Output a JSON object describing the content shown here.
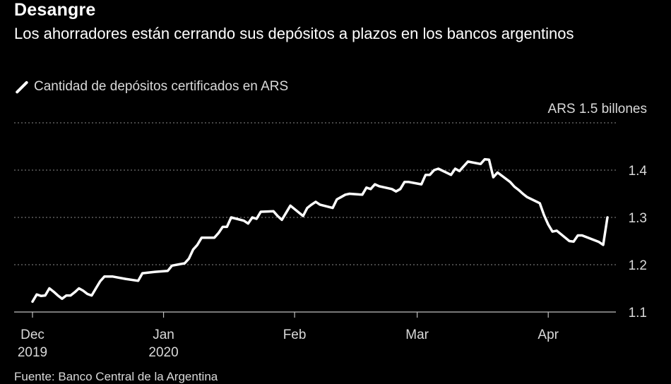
{
  "header": {
    "title": "Desangre",
    "subtitle": "Los ahorradores están cerrando sus depósitos a plazos en los bancos argentinos"
  },
  "legend": {
    "label": "Cantidad de depósitos certificados en ARS"
  },
  "source": "Fuente: Banco Central de la Argentina",
  "colors": {
    "background": "#000000",
    "line": "#ffffff",
    "grid": "#8c8c8c",
    "text": "#d9d9d9"
  },
  "chart_data": {
    "type": "line",
    "ylabel_unit": "ARS  1.5 billones",
    "ylim": [
      1.1,
      1.5
    ],
    "yticks": [
      {
        "value": 1.1,
        "label": "1.1"
      },
      {
        "value": 1.2,
        "label": "1.2"
      },
      {
        "value": 1.3,
        "label": "1.3"
      },
      {
        "value": 1.4,
        "label": "1.4"
      }
    ],
    "xlim": [
      "2019-12-01",
      "2020-04-15"
    ],
    "xticks": [
      {
        "date": "2019-12-01",
        "label": "Dec",
        "sublabel": "2019"
      },
      {
        "date": "2020-01-01",
        "label": "Jan",
        "sublabel": "2020"
      },
      {
        "date": "2020-02-01",
        "label": "Feb",
        "sublabel": ""
      },
      {
        "date": "2020-03-01",
        "label": "Mar",
        "sublabel": ""
      },
      {
        "date": "2020-04-01",
        "label": "Apr",
        "sublabel": ""
      }
    ],
    "grid": true,
    "legend_position": "top-left",
    "series": [
      {
        "points": [
          [
            "2019-12-01",
            1.122
          ],
          [
            "2019-12-02",
            1.137
          ],
          [
            "2019-12-03",
            1.134
          ],
          [
            "2019-12-04",
            1.135
          ],
          [
            "2019-12-05",
            1.15
          ],
          [
            "2019-12-06",
            1.143
          ],
          [
            "2019-12-07",
            1.135
          ],
          [
            "2019-12-08",
            1.128
          ],
          [
            "2019-12-09",
            1.135
          ],
          [
            "2019-12-10",
            1.135
          ],
          [
            "2019-12-11",
            1.142
          ],
          [
            "2019-12-12",
            1.15
          ],
          [
            "2019-12-13",
            1.145
          ],
          [
            "2019-12-14",
            1.138
          ],
          [
            "2019-12-15",
            1.135
          ],
          [
            "2019-12-16",
            1.15
          ],
          [
            "2019-12-17",
            1.165
          ],
          [
            "2019-12-18",
            1.175
          ],
          [
            "2019-12-19",
            1.175
          ],
          [
            "2019-12-20",
            1.175
          ],
          [
            "2019-12-23",
            1.17
          ],
          [
            "2019-12-26",
            1.166
          ],
          [
            "2019-12-27",
            1.182
          ],
          [
            "2019-12-30",
            1.185
          ],
          [
            "2020-01-02",
            1.187
          ],
          [
            "2020-01-03",
            1.198
          ],
          [
            "2020-01-06",
            1.203
          ],
          [
            "2020-01-07",
            1.213
          ],
          [
            "2020-01-08",
            1.232
          ],
          [
            "2020-01-09",
            1.242
          ],
          [
            "2020-01-10",
            1.257
          ],
          [
            "2020-01-13",
            1.257
          ],
          [
            "2020-01-14",
            1.267
          ],
          [
            "2020-01-15",
            1.28
          ],
          [
            "2020-01-16",
            1.28
          ],
          [
            "2020-01-17",
            1.3
          ],
          [
            "2020-01-20",
            1.293
          ],
          [
            "2020-01-21",
            1.287
          ],
          [
            "2020-01-22",
            1.3
          ],
          [
            "2020-01-23",
            1.297
          ],
          [
            "2020-01-24",
            1.312
          ],
          [
            "2020-01-27",
            1.313
          ],
          [
            "2020-01-28",
            1.303
          ],
          [
            "2020-01-29",
            1.295
          ],
          [
            "2020-01-30",
            1.31
          ],
          [
            "2020-01-31",
            1.325
          ],
          [
            "2020-02-03",
            1.303
          ],
          [
            "2020-02-04",
            1.32
          ],
          [
            "2020-02-05",
            1.327
          ],
          [
            "2020-02-06",
            1.333
          ],
          [
            "2020-02-07",
            1.327
          ],
          [
            "2020-02-10",
            1.32
          ],
          [
            "2020-02-11",
            1.338
          ],
          [
            "2020-02-12",
            1.343
          ],
          [
            "2020-02-13",
            1.348
          ],
          [
            "2020-02-14",
            1.35
          ],
          [
            "2020-02-17",
            1.348
          ],
          [
            "2020-02-18",
            1.363
          ],
          [
            "2020-02-19",
            1.36
          ],
          [
            "2020-02-20",
            1.37
          ],
          [
            "2020-02-21",
            1.366
          ],
          [
            "2020-02-24",
            1.36
          ],
          [
            "2020-02-25",
            1.355
          ],
          [
            "2020-02-26",
            1.36
          ],
          [
            "2020-02-27",
            1.375
          ],
          [
            "2020-02-28",
            1.375
          ],
          [
            "2020-03-02",
            1.37
          ],
          [
            "2020-03-03",
            1.39
          ],
          [
            "2020-03-04",
            1.39
          ],
          [
            "2020-03-05",
            1.4
          ],
          [
            "2020-03-06",
            1.403
          ],
          [
            "2020-03-09",
            1.39
          ],
          [
            "2020-03-10",
            1.403
          ],
          [
            "2020-03-11",
            1.398
          ],
          [
            "2020-03-12",
            1.408
          ],
          [
            "2020-03-13",
            1.418
          ],
          [
            "2020-03-16",
            1.413
          ],
          [
            "2020-03-17",
            1.423
          ],
          [
            "2020-03-18",
            1.422
          ],
          [
            "2020-03-19",
            1.385
          ],
          [
            "2020-03-20",
            1.395
          ],
          [
            "2020-03-23",
            1.375
          ],
          [
            "2020-03-24",
            1.365
          ],
          [
            "2020-03-25",
            1.358
          ],
          [
            "2020-03-26",
            1.35
          ],
          [
            "2020-03-27",
            1.343
          ],
          [
            "2020-03-30",
            1.33
          ],
          [
            "2020-03-31",
            1.305
          ],
          [
            "2020-04-01",
            1.285
          ],
          [
            "2020-04-02",
            1.27
          ],
          [
            "2020-04-03",
            1.272
          ],
          [
            "2020-04-06",
            1.25
          ],
          [
            "2020-04-07",
            1.249
          ],
          [
            "2020-04-08",
            1.262
          ],
          [
            "2020-04-09",
            1.262
          ],
          [
            "2020-04-13",
            1.248
          ],
          [
            "2020-04-14",
            1.242
          ],
          [
            "2020-04-15",
            1.3
          ]
        ]
      }
    ]
  }
}
